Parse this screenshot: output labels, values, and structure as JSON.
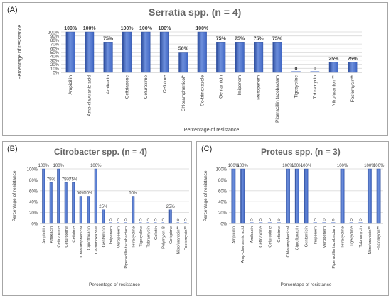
{
  "charts": [
    {
      "label": "(A)",
      "title": "Serratia spp. (n = 4)"
    },
    {
      "label": "(B)",
      "title": "Citrobacter spp. (n = 4)"
    },
    {
      "label": "(C)",
      "title": "Proteus spp. (n = 3)"
    }
  ],
  "colors": {
    "bar": "#3f66c4",
    "bar_dark": "#2a4a9a",
    "bar_light": "#6d8fdc",
    "grid": "#d9d9d9",
    "text": "#404040"
  },
  "chart_data": [
    {
      "type": "bar",
      "title": "Serratia spp. (n = 4)",
      "ylabel": "Percentage of resistance",
      "xlabel": "Percentage of resistance",
      "ylim": [
        0,
        100
      ],
      "yticks": [
        "0%",
        "10%",
        "20%",
        "30%",
        "40%",
        "50%",
        "60%",
        "70%",
        "80%",
        "90%",
        "100%"
      ],
      "grid": true,
      "categories": [
        "Ampicillin",
        "Amp-clavulanic acid",
        "Amikacin",
        "Ceftriaxone",
        "Cefuroxime",
        "Cefixime",
        "Chloramphenicol*",
        "Co-trimoxazole",
        "Gentamicin",
        "Imipenem",
        "Meropenem",
        "Piperacillin tazobactam",
        "Tigecycline",
        "Tobramycin",
        "Nitrofurantoin**",
        "Fosfomycin**"
      ],
      "values": [
        100,
        100,
        75,
        100,
        100,
        100,
        50,
        100,
        75,
        75,
        75,
        75,
        0,
        0,
        25,
        25
      ],
      "data_labels": [
        "100%",
        "100%",
        "75%",
        "100%",
        "100%",
        "100%",
        "50%",
        "100%",
        "75%",
        "75%",
        "75%",
        "75%",
        "0",
        "0",
        "25%",
        "25%"
      ]
    },
    {
      "type": "bar",
      "title": "Citrobacter spp. (n = 4)",
      "ylabel": "Percentage of resistance",
      "xlabel": "Percentage of resistance",
      "ylim": [
        0,
        100
      ],
      "yticks": [
        "0%",
        "20%",
        "40%",
        "60%",
        "80%",
        "100%"
      ],
      "grid": true,
      "categories": [
        "Ampicillin",
        "Amikacin",
        "Ceftriaxone",
        "Cefuroxime",
        "Cefixime",
        "Chloramphenicol",
        "Ciprofloxacin",
        "Co-trimoxazole",
        "Gentamicin",
        "Imipenem",
        "Meropenem",
        "Piperacillin tazobactam",
        "Tetracycline",
        "Tigecycline",
        "Tobramycin",
        "Colistin",
        "Polymyxin B",
        "Cefepime",
        "Nitrofurantoin**",
        "Fosfomycin**"
      ],
      "values": [
        100,
        75,
        100,
        75,
        75,
        50,
        50,
        100,
        25,
        0,
        0,
        0,
        50,
        0,
        0,
        0,
        0,
        25,
        0,
        0
      ],
      "data_labels": [
        "100%",
        "75%",
        "100%",
        "75%",
        "75%",
        "50%",
        "50%",
        "100%",
        "25%",
        "0",
        "0",
        "0",
        "50%",
        "0",
        "0",
        "0",
        "0",
        "25%",
        "0",
        "0"
      ]
    },
    {
      "type": "bar",
      "title": "Proteus spp. (n = 3)",
      "ylabel": "Percentage of resistance",
      "xlabel": "Percentage of resistance",
      "ylim": [
        0,
        100
      ],
      "yticks": [
        "0%",
        "20%",
        "40%",
        "60%",
        "80%",
        "100%"
      ],
      "grid": true,
      "categories": [
        "Ampicillin",
        "Amp-clavulanic acid",
        "Amikacin",
        "Ceftriaxone",
        "Cefuroxime",
        "Cefixime",
        "Chloramphenicol",
        "Ciprofloxacin",
        "Gentamicin",
        "Imipenem",
        "Meropenem",
        "Piperacillin tazobactam",
        "Tetracycline",
        "Tigecycline",
        "Tobramycin",
        "Nitrofurantoin**",
        "Fosfomycin**"
      ],
      "values": [
        100,
        100,
        0,
        0,
        0,
        0,
        100,
        100,
        100,
        0,
        0,
        0,
        100,
        0,
        0,
        100,
        100
      ],
      "data_labels": [
        "100%",
        "100%",
        "0",
        "0",
        "0",
        "0",
        "100%",
        "100%",
        "100%",
        "0",
        "0",
        "0",
        "100%",
        "0",
        "0",
        "100%",
        "100%"
      ]
    }
  ]
}
